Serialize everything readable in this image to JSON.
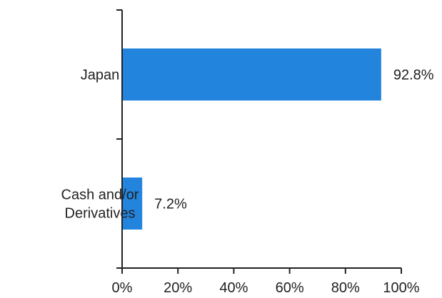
{
  "chart_data": {
    "type": "bar",
    "orientation": "horizontal",
    "categories": [
      [
        "Japan"
      ],
      [
        "Cash and/or",
        "Derivatives"
      ]
    ],
    "values": [
      92.8,
      7.2
    ],
    "value_labels": [
      "92.8%",
      "7.2%"
    ],
    "xlim": [
      0,
      100
    ],
    "x_ticks": [
      0,
      20,
      40,
      60,
      80,
      100
    ],
    "x_tick_labels": [
      "0%",
      "20%",
      "40%",
      "60%",
      "80%",
      "100%"
    ],
    "bar_color": "#2384de",
    "axis_color": "#222222",
    "grid": false,
    "legend": "none"
  }
}
